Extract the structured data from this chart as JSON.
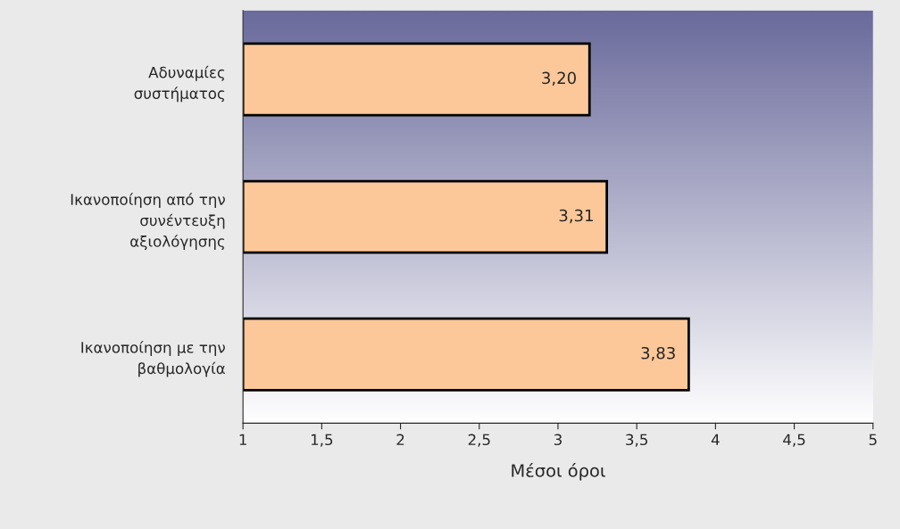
{
  "chart_data": {
    "type": "bar",
    "orientation": "horizontal",
    "xlabel": "Μέσοι όροι",
    "categories": [
      "Αδυναμίες\nσυστήματος",
      "Ικανοποίηση από την\nσυνέντευξη\nαξιολόγησης",
      "Ικανοποίηση με την\nβαθμολογία"
    ],
    "values": [
      3.2,
      3.31,
      3.83
    ],
    "value_labels": [
      "3,20",
      "3,31",
      "3,83"
    ],
    "color": "#fcc89a",
    "xlim": [
      1,
      5
    ],
    "xticks": [
      1,
      {
        "value": 1.5,
        "label": "1,5"
      },
      2,
      {
        "value": 2.5,
        "label": "2,5"
      },
      3,
      {
        "value": 3.5,
        "label": "3,5"
      },
      4,
      {
        "value": 4.5,
        "label": "4,5"
      },
      5
    ],
    "grid": false,
    "legend": false
  }
}
